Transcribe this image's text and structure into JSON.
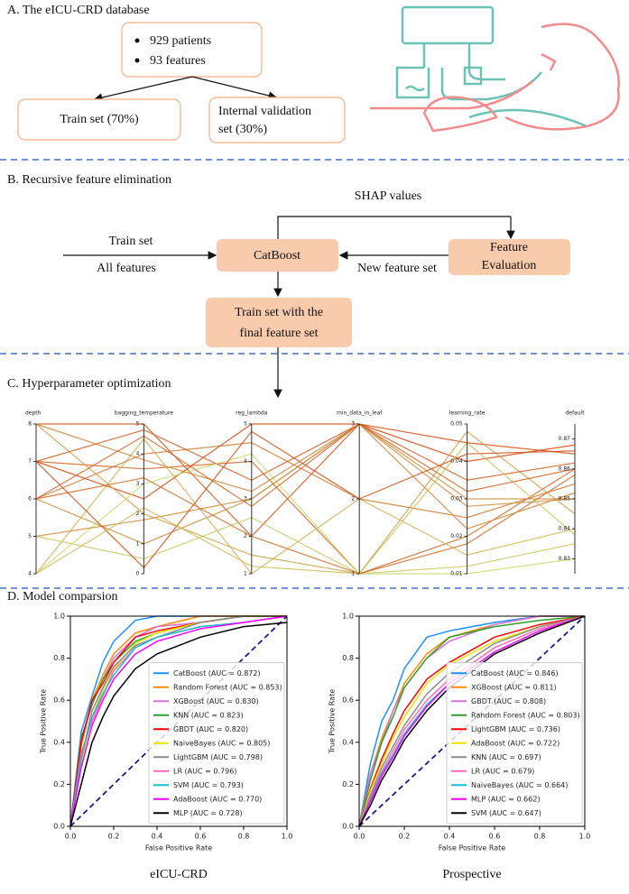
{
  "sections": {
    "a": {
      "title": "A. The eICU-CRD database",
      "bullets": [
        "929 patients",
        "93 features"
      ],
      "train": "Train  set (70%)",
      "validation": [
        "Internal validation",
        "set (30%)"
      ]
    },
    "b": {
      "title": "B. Recursive feature elimination",
      "shap": "SHAP values",
      "train_set": "Train set",
      "all_features": "All features",
      "catboost": "CatBoost",
      "feature_eval": [
        "Feature",
        "Evaluation"
      ],
      "new_feature_set": "New feature set",
      "final": [
        "Train set with the",
        "final feature set"
      ]
    },
    "c": {
      "title": "C. Hyperparameter  optimization"
    },
    "d": {
      "title": "D. Model comparsion"
    }
  },
  "chart_data": [
    {
      "type": "parallel",
      "color_range": [
        "#c8f07a",
        "#d42a00"
      ],
      "dimensions": [
        {
          "name": "depth",
          "lim": [
            4,
            8
          ],
          "ticks": [
            4,
            5,
            6,
            7,
            8
          ]
        },
        {
          "name": "bagging_temperature",
          "lim": [
            0,
            5
          ],
          "ticks": [
            0,
            1,
            2,
            3,
            4,
            5
          ]
        },
        {
          "name": "reg_lambda",
          "lim": [
            1,
            5
          ],
          "ticks": [
            1,
            2,
            3,
            4,
            5
          ]
        },
        {
          "name": "min_data_in_leaf",
          "lim": [
            1,
            3
          ],
          "ticks": [
            1,
            2,
            3
          ]
        },
        {
          "name": "learning_rate",
          "lim": [
            0.01,
            0.05
          ],
          "ticks": [
            0.01,
            0.02,
            0.03,
            0.04,
            0.05
          ]
        },
        {
          "name": "default",
          "lim": [
            0.825,
            0.875
          ],
          "ticks": [
            0.83,
            0.84,
            0.85,
            0.86,
            0.87
          ]
        }
      ],
      "trials": [
        [
          8,
          5,
          2,
          3,
          0.045,
          0.865
        ],
        [
          7,
          3.5,
          4,
          1,
          0.02,
          0.86
        ],
        [
          6,
          1,
          3,
          3,
          0.03,
          0.85
        ],
        [
          4,
          4.5,
          1,
          2,
          0.015,
          0.84
        ],
        [
          7,
          2.5,
          5,
          3,
          0.04,
          0.868
        ],
        [
          5,
          0.5,
          2.5,
          1,
          0.012,
          0.835
        ],
        [
          6,
          4,
          4.5,
          2,
          0.025,
          0.855
        ],
        [
          8,
          2,
          1.5,
          1,
          0.048,
          0.845
        ],
        [
          7,
          4.8,
          3.5,
          3,
          0.035,
          0.862
        ],
        [
          4,
          3,
          4.2,
          1,
          0.01,
          0.83
        ],
        [
          5,
          1.8,
          3,
          3,
          0.028,
          0.85
        ],
        [
          6,
          3.2,
          2,
          1,
          0.018,
          0.858
        ],
        [
          7,
          0.2,
          4.8,
          2,
          0.042,
          0.866
        ],
        [
          8,
          3.8,
          3.2,
          3,
          0.022,
          0.852
        ],
        [
          4,
          2.2,
          1.2,
          1,
          0.045,
          0.838
        ],
        [
          6,
          4.6,
          2.8,
          3,
          0.032,
          0.86
        ]
      ]
    },
    {
      "type": "roc",
      "caption": "eICU-CRD",
      "xlabel": "False Positive Rate",
      "ylabel": "True Positive Rate",
      "xlim": [
        0,
        1
      ],
      "ylim": [
        0,
        1
      ],
      "xticks": [
        {
          "value": 0,
          "label": "0.0"
        },
        0.2,
        0.4,
        0.6,
        0.8,
        {
          "value": 1,
          "label": "1.0"
        }
      ],
      "yticks": [
        {
          "value": 0,
          "label": "0.0"
        },
        0.2,
        0.4,
        0.6,
        0.8,
        {
          "value": 1,
          "label": "1.0"
        }
      ],
      "legend": "lower right",
      "x": [
        0,
        0.05,
        0.1,
        0.15,
        0.2,
        0.3,
        0.4,
        0.6,
        0.8,
        1
      ],
      "series": [
        {
          "name": "CatBoost (AUC = 0.872)",
          "color": "#1e90ff",
          "values": [
            0,
            0.45,
            0.62,
            0.78,
            0.88,
            0.98,
            1,
            1,
            1,
            1
          ]
        },
        {
          "name": "Random Forest (AUC = 0.853)",
          "color": "#ff8c00",
          "values": [
            0,
            0.38,
            0.6,
            0.72,
            0.82,
            0.92,
            0.95,
            1,
            1,
            1
          ]
        },
        {
          "name": "XGBoost (AUC = 0.830)",
          "color": "#da70d6",
          "values": [
            0,
            0.4,
            0.58,
            0.7,
            0.8,
            0.9,
            0.95,
            0.97,
            1,
            1
          ]
        },
        {
          "name": "KNN (AUC = 0.823)",
          "color": "#2ca02c",
          "values": [
            0,
            0.42,
            0.58,
            0.7,
            0.78,
            0.88,
            0.92,
            0.97,
            1,
            1
          ]
        },
        {
          "name": "GBDT (AUC = 0.820)",
          "color": "#ff0000",
          "values": [
            0,
            0.4,
            0.6,
            0.68,
            0.78,
            0.9,
            0.93,
            0.97,
            1,
            1
          ]
        },
        {
          "name": "NaiveBayes (AUC = 0.805)",
          "color": "#e6e600",
          "values": [
            0,
            0.3,
            0.52,
            0.65,
            0.75,
            0.87,
            0.92,
            0.97,
            1,
            1
          ]
        },
        {
          "name": "LightGBM (AUC = 0.798)",
          "color": "#8c8c8c",
          "values": [
            0,
            0.32,
            0.55,
            0.66,
            0.76,
            0.86,
            0.9,
            0.97,
            1,
            1
          ]
        },
        {
          "name": "LR (AUC = 0.796)",
          "color": "#ff69b4",
          "values": [
            0,
            0.35,
            0.5,
            0.62,
            0.74,
            0.85,
            0.9,
            0.95,
            0.97,
            1
          ]
        },
        {
          "name": "SVM (AUC = 0.793)",
          "color": "#17becf",
          "values": [
            0,
            0.33,
            0.52,
            0.63,
            0.72,
            0.85,
            0.9,
            0.95,
            0.97,
            1
          ]
        },
        {
          "name": "AdaBoost (AUC = 0.770)",
          "color": "#ff00ff",
          "values": [
            0,
            0.28,
            0.48,
            0.6,
            0.7,
            0.82,
            0.88,
            0.94,
            0.97,
            1
          ]
        },
        {
          "name": "MLP (AUC = 0.728)",
          "color": "#000000",
          "values": [
            0,
            0.2,
            0.4,
            0.52,
            0.62,
            0.75,
            0.82,
            0.9,
            0.95,
            0.97
          ]
        }
      ]
    },
    {
      "type": "roc",
      "caption": "Prospective",
      "xlabel": "False Positive Rate",
      "ylabel": "True Positive Rate",
      "xlim": [
        0,
        1
      ],
      "ylim": [
        0,
        1
      ],
      "xticks": [
        {
          "value": 0,
          "label": "0.0"
        },
        0.2,
        0.4,
        0.6,
        0.8,
        {
          "value": 1,
          "label": "1.0"
        }
      ],
      "yticks": [
        {
          "value": 0,
          "label": "0.0"
        },
        0.2,
        0.4,
        0.6,
        0.8,
        {
          "value": 1,
          "label": "1.0"
        }
      ],
      "legend": "lower right",
      "x": [
        0,
        0.05,
        0.1,
        0.15,
        0.2,
        0.3,
        0.4,
        0.6,
        0.8,
        1
      ],
      "series": [
        {
          "name": "CatBoost (AUC = 0.846)",
          "color": "#1e90ff",
          "values": [
            0,
            0.3,
            0.5,
            0.6,
            0.75,
            0.9,
            0.93,
            0.97,
            1,
            1
          ]
        },
        {
          "name": "XGBoost (AUC = 0.811)",
          "color": "#ff8c00",
          "values": [
            0,
            0.25,
            0.42,
            0.55,
            0.68,
            0.82,
            0.9,
            0.96,
            1,
            1
          ]
        },
        {
          "name": "GBDT (AUC = 0.808)",
          "color": "#da70d6",
          "values": [
            0,
            0.25,
            0.4,
            0.55,
            0.66,
            0.8,
            0.88,
            0.96,
            1,
            1
          ]
        },
        {
          "name": "Random Forest (AUC = 0.803)",
          "color": "#2ca02c",
          "values": [
            0,
            0.22,
            0.4,
            0.52,
            0.66,
            0.8,
            0.9,
            0.95,
            0.98,
            1
          ]
        },
        {
          "name": "LightGBM (AUC = 0.736)",
          "color": "#ff0000",
          "values": [
            0,
            0.18,
            0.32,
            0.44,
            0.55,
            0.7,
            0.78,
            0.9,
            0.96,
            1
          ]
        },
        {
          "name": "AdaBoost (AUC = 0.722)",
          "color": "#e6e600",
          "values": [
            0,
            0.17,
            0.3,
            0.42,
            0.52,
            0.68,
            0.77,
            0.88,
            0.95,
            1
          ]
        },
        {
          "name": "KNN (AUC = 0.697)",
          "color": "#8c8c8c",
          "values": [
            0,
            0.15,
            0.28,
            0.38,
            0.48,
            0.63,
            0.73,
            0.87,
            0.95,
            1
          ]
        },
        {
          "name": "LR (AUC = 0.679)",
          "color": "#ff69b4",
          "values": [
            0,
            0.14,
            0.26,
            0.36,
            0.46,
            0.6,
            0.7,
            0.85,
            0.94,
            1
          ]
        },
        {
          "name": "NaiveBayes (AUC = 0.664)",
          "color": "#17becf",
          "values": [
            0,
            0.13,
            0.25,
            0.34,
            0.44,
            0.58,
            0.68,
            0.83,
            0.93,
            1
          ]
        },
        {
          "name": "MLP (AUC = 0.662)",
          "color": "#ff00ff",
          "values": [
            0,
            0.12,
            0.24,
            0.33,
            0.43,
            0.57,
            0.68,
            0.83,
            0.93,
            1
          ]
        },
        {
          "name": "SVM (AUC = 0.647)",
          "color": "#000000",
          "values": [
            0,
            0.1,
            0.22,
            0.31,
            0.41,
            0.55,
            0.66,
            0.82,
            0.92,
            1
          ]
        }
      ]
    }
  ]
}
